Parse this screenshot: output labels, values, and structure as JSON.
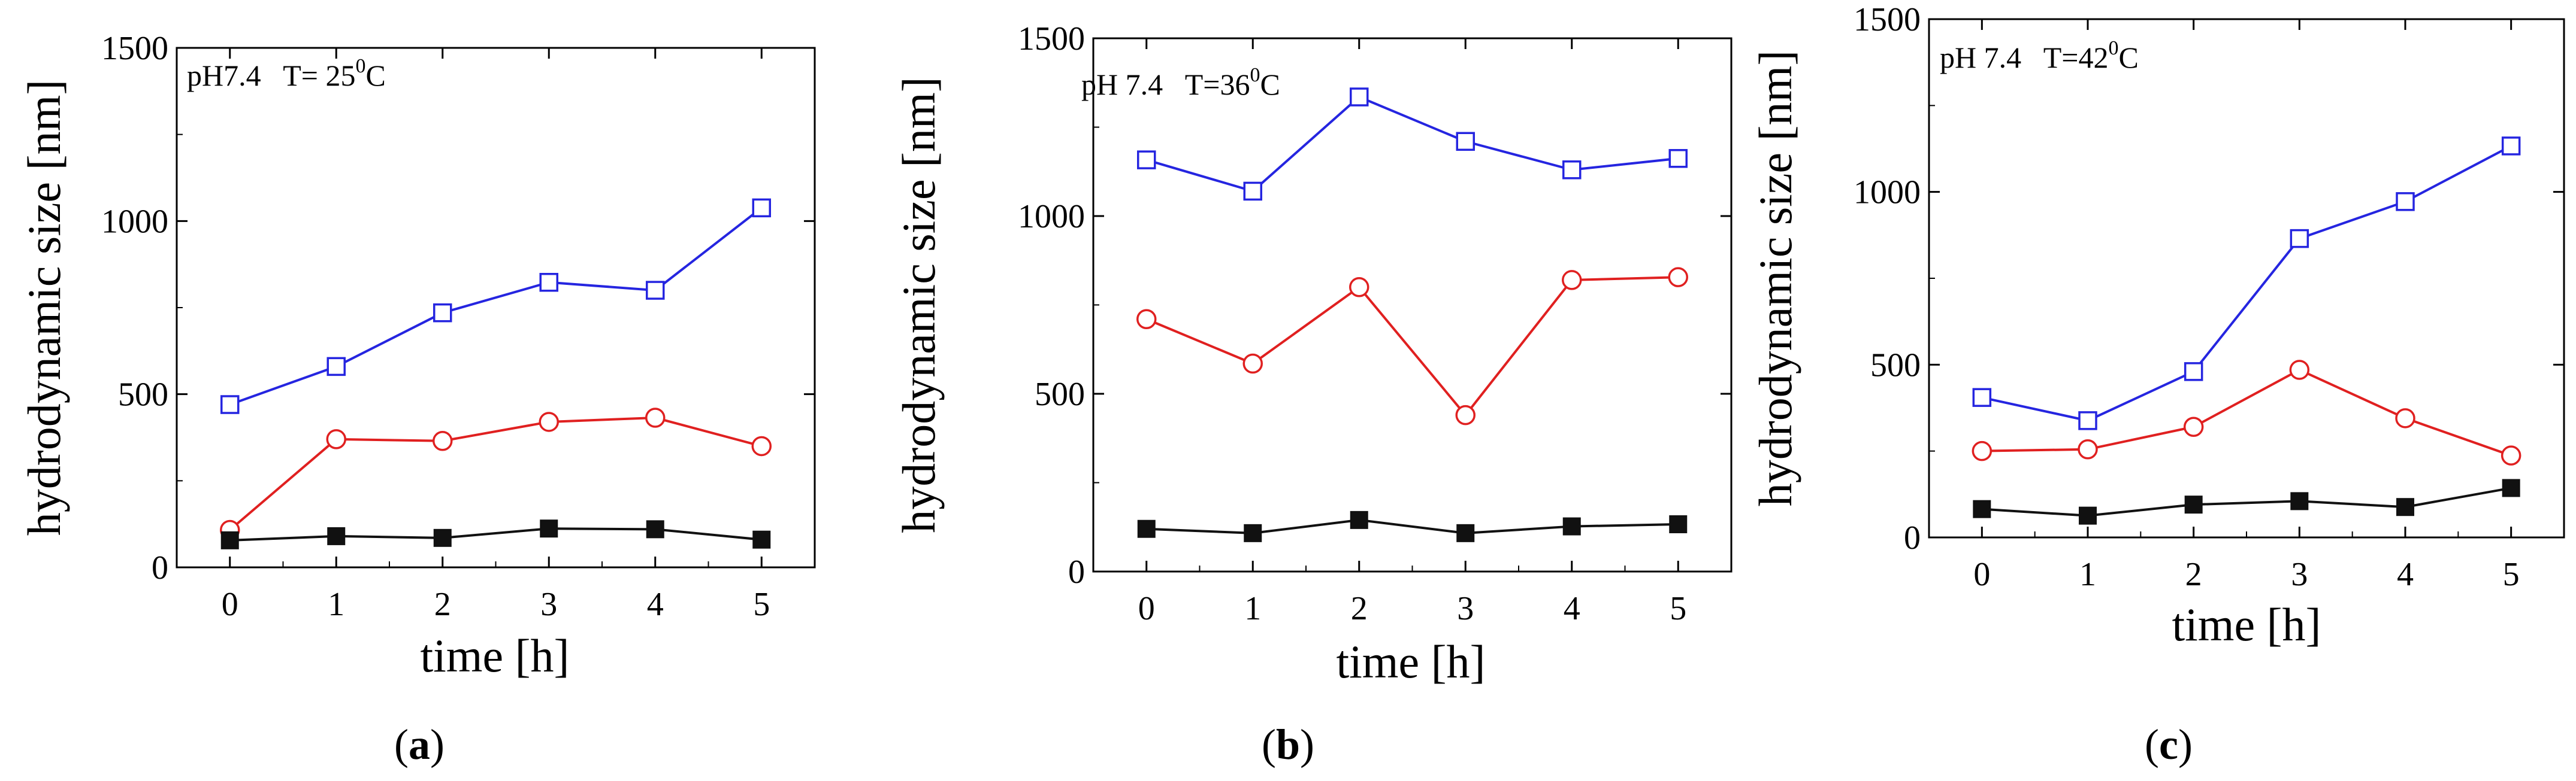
{
  "chart_data": [
    {
      "type": "line",
      "panel": "a",
      "caption": "a",
      "annotation": "pH7.4   T= 25",
      "annotation_sup": "0",
      "annotation_suffix": "C",
      "xlabel": "time [h]",
      "ylabel": "hydrodynamic size [nm]",
      "x": [
        0,
        1,
        2,
        3,
        4,
        5
      ],
      "xticks": [
        0,
        1,
        2,
        3,
        4,
        5
      ],
      "yticks": [
        0,
        500,
        1000,
        1500
      ],
      "xlim": [
        -0.5,
        5.5
      ],
      "ylim": [
        0,
        1500
      ],
      "series": [
        {
          "name": "blue open squares",
          "color": "#2525e0",
          "marker": "open-square",
          "values": [
            470,
            580,
            735,
            823,
            800,
            1038
          ]
        },
        {
          "name": "red open circles",
          "color": "#e02020",
          "marker": "open-circle",
          "values": [
            108,
            370,
            365,
            420,
            432,
            350
          ]
        },
        {
          "name": "black filled squares",
          "color": "#111111",
          "marker": "filled-square",
          "values": [
            78,
            90,
            85,
            112,
            110,
            80
          ]
        }
      ]
    },
    {
      "type": "line",
      "panel": "b",
      "caption": "b",
      "annotation": "pH 7.4   T=36",
      "annotation_sup": "0",
      "annotation_suffix": "C",
      "xlabel": "time [h]",
      "ylabel": "hydrodynamic size [nm]",
      "x": [
        0,
        1,
        2,
        3,
        4,
        5
      ],
      "xticks": [
        0,
        1,
        2,
        3,
        4,
        5
      ],
      "yticks": [
        0,
        500,
        1000,
        1500
      ],
      "xlim": [
        -0.5,
        5.5
      ],
      "ylim": [
        0,
        1500
      ],
      "series": [
        {
          "name": "blue open squares",
          "color": "#2525e0",
          "marker": "open-square",
          "values": [
            1158,
            1070,
            1335,
            1210,
            1130,
            1162
          ]
        },
        {
          "name": "red open circles",
          "color": "#e02020",
          "marker": "open-circle",
          "values": [
            710,
            585,
            800,
            440,
            820,
            828
          ]
        },
        {
          "name": "black filled squares",
          "color": "#111111",
          "marker": "filled-square",
          "values": [
            120,
            108,
            145,
            108,
            127,
            133
          ]
        }
      ]
    },
    {
      "type": "line",
      "panel": "c",
      "caption": "c",
      "annotation": "pH 7.4   T=42",
      "annotation_sup": "0",
      "annotation_suffix": "C",
      "xlabel": "time [h]",
      "ylabel": "hydrodynamic size [nm]",
      "x": [
        0,
        1,
        2,
        3,
        4,
        5
      ],
      "xticks": [
        0,
        1,
        2,
        3,
        4,
        5
      ],
      "yticks": [
        0,
        500,
        1000,
        1500
      ],
      "xlim": [
        -0.5,
        5.5
      ],
      "ylim": [
        0,
        1500
      ],
      "series": [
        {
          "name": "blue open squares",
          "color": "#2525e0",
          "marker": "open-square",
          "values": [
            405,
            338,
            480,
            865,
            972,
            1133
          ]
        },
        {
          "name": "red open circles",
          "color": "#e02020",
          "marker": "open-circle",
          "values": [
            250,
            255,
            320,
            485,
            345,
            237
          ]
        },
        {
          "name": "black filled squares",
          "color": "#111111",
          "marker": "filled-square",
          "values": [
            82,
            63,
            95,
            105,
            88,
            143
          ]
        }
      ]
    }
  ]
}
